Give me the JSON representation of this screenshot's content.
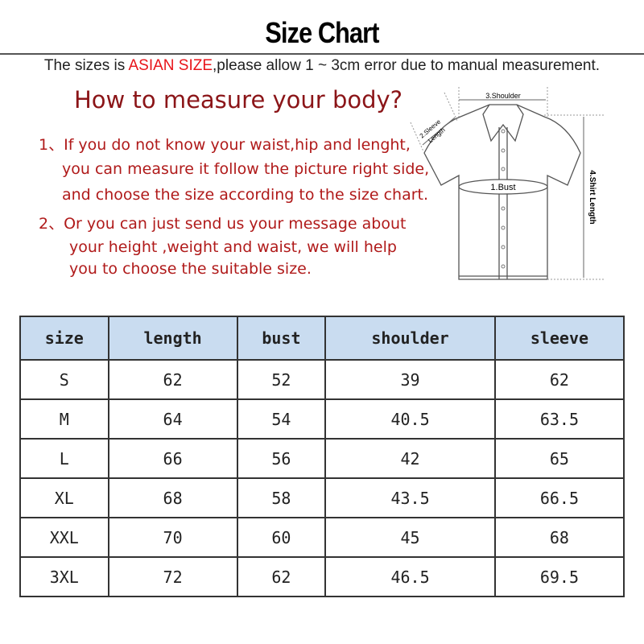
{
  "title": "Size  Chart",
  "note": {
    "before": "The sizes is ",
    "highlight": "ASIAN SIZE",
    "after": ",please allow 1 ~ 3cm error due to manual measurement."
  },
  "howto": "How to measure your body?",
  "instructions": [
    "1、If you do not know your waist,hip and lenght,",
    "you can measure it follow the picture right side,",
    "and choose the size according to the size chart.",
    "2、Or you can just send us your message about",
    "your height ,weight and waist, we will help",
    "you to choose the suitable size."
  ],
  "diagram": {
    "shoulder": "3.Shoulder",
    "sleeve1": "2.Sleeve",
    "sleeve2": "Length",
    "bust": "1.Bust",
    "length": "4.Shirt Length"
  },
  "colors": {
    "highlight": "#e8141a",
    "heading": "#8b1518",
    "header_bg": "#c9dcf0"
  },
  "table": {
    "headers": [
      "size",
      "length",
      "bust",
      "shoulder",
      "sleeve"
    ],
    "rows": [
      [
        "S",
        "62",
        "52",
        "39",
        "62"
      ],
      [
        "M",
        "64",
        "54",
        "40.5",
        "63.5"
      ],
      [
        "L",
        "66",
        "56",
        "42",
        "65"
      ],
      [
        "XL",
        "68",
        "58",
        "43.5",
        "66.5"
      ],
      [
        "XXL",
        "70",
        "60",
        "45",
        "68"
      ],
      [
        "3XL",
        "72",
        "62",
        "46.5",
        "69.5"
      ]
    ]
  }
}
